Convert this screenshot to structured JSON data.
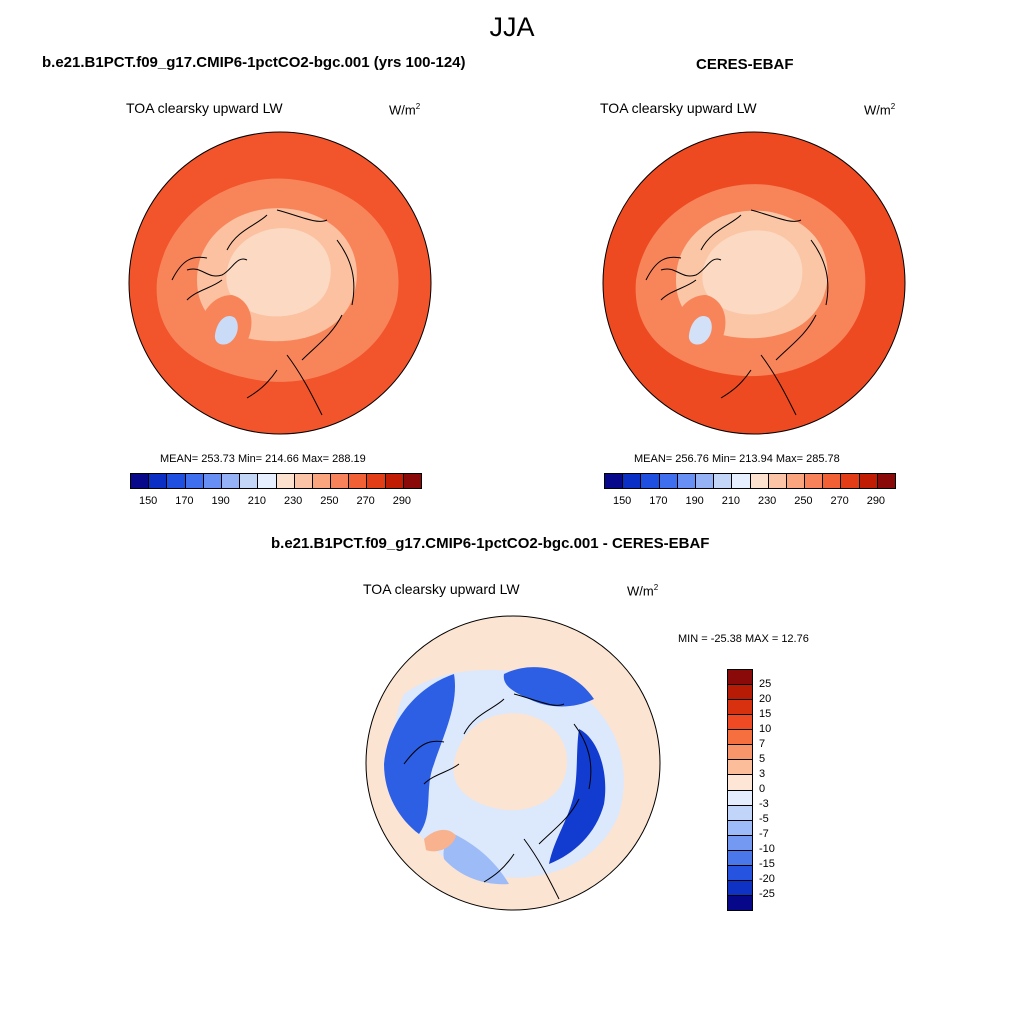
{
  "title": "JJA",
  "panels": [
    {
      "case_title": "b.e21.B1PCT.f09_g17.CMIP6-1pctCO2-bgc.001 (yrs 100-124)",
      "variable": "TOA clearsky upward LW",
      "units_base": "W/m",
      "units_exp": "2",
      "stats": "MEAN= 253.73  Min= 214.66  Max= 288.19"
    },
    {
      "case_title": "CERES-EBAF",
      "variable": "TOA clearsky upward LW",
      "units_base": "W/m",
      "units_exp": "2",
      "stats": "MEAN= 256.76  Min= 213.94  Max= 285.78"
    }
  ],
  "diff_panel": {
    "case_title": "b.e21.B1PCT.f09_g17.CMIP6-1pctCO2-bgc.001 - CERES-EBAF",
    "variable": "TOA clearsky upward LW",
    "units_base": "W/m",
    "units_exp": "2",
    "stats": "MIN = -25.38 MAX =  12.76"
  },
  "colorbar_abs": {
    "tick_labels": [
      "150",
      "170",
      "190",
      "210",
      "230",
      "250",
      "270",
      "290"
    ],
    "colors": [
      "#08088a",
      "#0b2fc4",
      "#1e4fe0",
      "#3f6fee",
      "#6890f4",
      "#95b2f6",
      "#c4d6f7",
      "#e6efff",
      "#fde1cf",
      "#fcc4a6",
      "#fba57f",
      "#f8835a",
      "#f26036",
      "#e23d17",
      "#c11d05",
      "#8a0a0a"
    ]
  },
  "colorbar_diff": {
    "tick_labels": [
      "25",
      "20",
      "15",
      "10",
      "7",
      "5",
      "3",
      "0",
      "-3",
      "-5",
      "-7",
      "-10",
      "-15",
      "-20",
      "-25"
    ],
    "colors": [
      "#8a0a0a",
      "#b71a05",
      "#d8310f",
      "#f04a24",
      "#f6703f",
      "#f9956a",
      "#fbbd9a",
      "#fde6d6",
      "#e3edfd",
      "#c1d5fb",
      "#9cbbf8",
      "#7399f2",
      "#4a77ea",
      "#2653df",
      "#0f32c4",
      "#07078a"
    ]
  },
  "maps": {
    "model": {
      "ocean": "#f2542b",
      "mid": "#f8845a",
      "arctic": "#fbc1a0",
      "ice": "#fcd9c2",
      "greenland_core": "#c9dbf7"
    },
    "obs": {
      "ocean": "#ee4a22",
      "mid": "#f8845a",
      "arctic": "#fbc6a6",
      "ice": "#fcd9c2",
      "greenland_core": "#d2e0f8"
    },
    "diff": {
      "base": "#fce4d2",
      "neg1": "#dce8fc",
      "neg2": "#9dbbf7",
      "neg3": "#2d5fe4",
      "neg4": "#123bd0",
      "pos1": "#f9b28e"
    }
  }
}
